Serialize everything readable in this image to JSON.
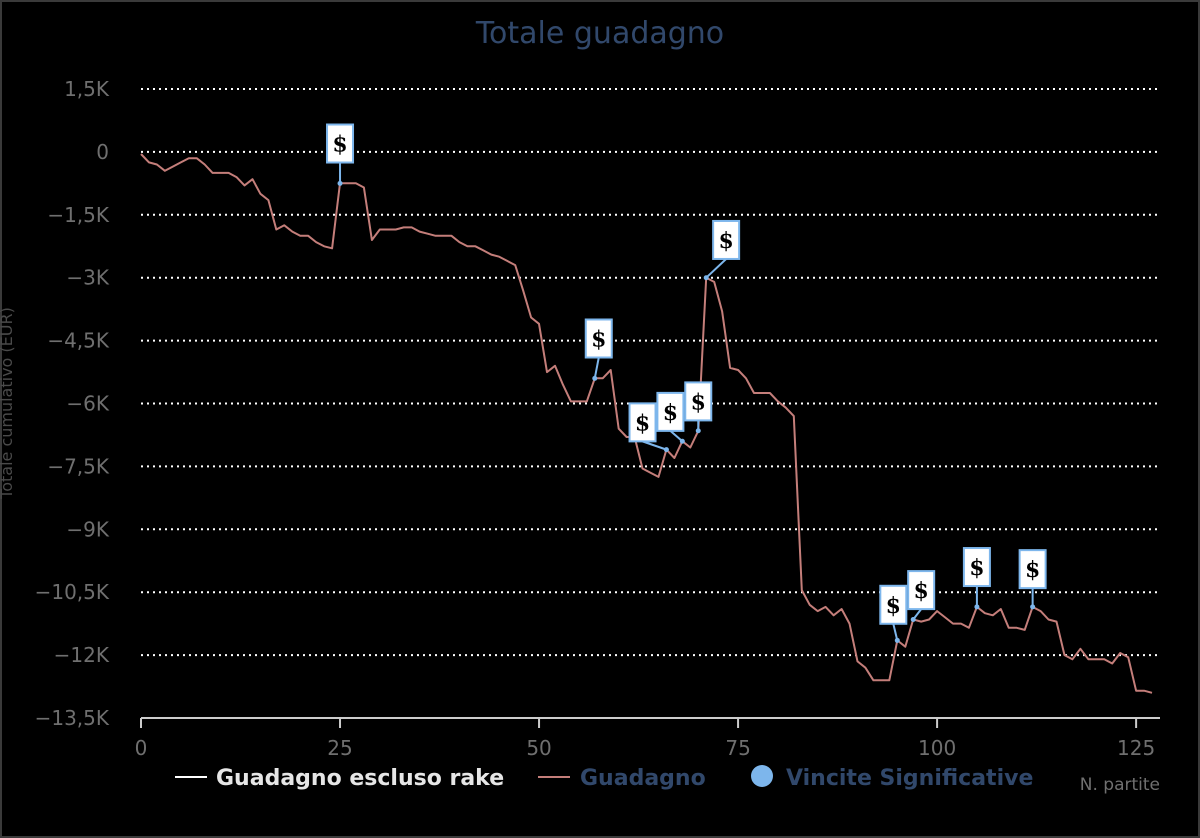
{
  "chart_data": {
    "type": "line",
    "title": "Totale guadagno",
    "xlabel": "N. partite",
    "ylabel": "Totale cumulativo (EUR)",
    "xlim": [
      0,
      128
    ],
    "ylim": [
      -13500,
      1500
    ],
    "x_ticks": [
      0,
      25,
      50,
      75,
      100,
      125
    ],
    "x_tick_labels": [
      "0",
      "25",
      "50",
      "75",
      "100",
      "125"
    ],
    "y_ticks": [
      1500,
      0,
      -1500,
      -3000,
      -4500,
      -6000,
      -7500,
      -9000,
      -10500,
      -12000,
      -13500
    ],
    "y_tick_labels": [
      "1,5K",
      "0",
      "−1,5K",
      "−3K",
      "−4,5K",
      "−6K",
      "−7,5K",
      "−9K",
      "−10,5K",
      "−12K",
      "−13,5K"
    ],
    "grid": true,
    "legend_position": "bottom",
    "colors": {
      "guadagno": "#c47e7a",
      "escluso_rake": "#ffffff",
      "vincite": "#7db6ec",
      "flag_border": "#7db6ec",
      "grid": "#ffffff"
    },
    "series": [
      {
        "name": "Guadagno escluso rake",
        "legend_color": "#ffffff",
        "values": []
      },
      {
        "name": "Guadagno",
        "color": "#c47e7a",
        "x": [
          0,
          1,
          2,
          3,
          4,
          5,
          6,
          7,
          8,
          9,
          10,
          11,
          12,
          13,
          14,
          15,
          16,
          17,
          18,
          19,
          20,
          21,
          22,
          23,
          24,
          25,
          26,
          27,
          28,
          29,
          30,
          31,
          32,
          33,
          34,
          35,
          36,
          37,
          38,
          39,
          40,
          41,
          42,
          43,
          44,
          45,
          46,
          47,
          48,
          49,
          50,
          51,
          52,
          53,
          54,
          55,
          56,
          57,
          58,
          59,
          60,
          61,
          62,
          63,
          64,
          65,
          66,
          67,
          68,
          69,
          70,
          71,
          72,
          73,
          74,
          75,
          76,
          77,
          78,
          79,
          80,
          81,
          82,
          83,
          84,
          85,
          86,
          87,
          88,
          89,
          90,
          91,
          92,
          93,
          94,
          95,
          96,
          97,
          98,
          99,
          100,
          101,
          102,
          103,
          104,
          105,
          106,
          107,
          108,
          109,
          110,
          111,
          112,
          113,
          114,
          115,
          116,
          117,
          118,
          119,
          120,
          121,
          122,
          123,
          124,
          125,
          126,
          127
        ],
        "y": [
          -50,
          -250,
          -300,
          -450,
          -350,
          -250,
          -150,
          -150,
          -300,
          -500,
          -500,
          -500,
          -600,
          -800,
          -650,
          -1000,
          -1150,
          -1850,
          -1750,
          -1900,
          -2000,
          -2000,
          -2150,
          -2250,
          -2300,
          -750,
          -750,
          -750,
          -850,
          -2100,
          -1850,
          -1850,
          -1850,
          -1800,
          -1800,
          -1900,
          -1950,
          -2000,
          -2000,
          -2000,
          -2150,
          -2250,
          -2250,
          -2350,
          -2450,
          -2500,
          -2600,
          -2700,
          -3300,
          -3950,
          -4100,
          -5250,
          -5100,
          -5550,
          -5950,
          -5950,
          -5950,
          -5400,
          -5400,
          -5200,
          -6600,
          -6800,
          -6800,
          -7550,
          -7650,
          -7750,
          -7100,
          -7300,
          -6900,
          -7050,
          -6650,
          -3000,
          -3100,
          -3800,
          -5150,
          -5200,
          -5400,
          -5750,
          -5750,
          -5750,
          -5950,
          -6100,
          -6300,
          -10450,
          -10800,
          -10950,
          -10850,
          -11050,
          -10900,
          -11250,
          -12150,
          -12300,
          -12600,
          -12600,
          -12600,
          -11650,
          -11800,
          -11150,
          -11200,
          -11150,
          -10950,
          -11100,
          -11250,
          -11250,
          -11350,
          -10850,
          -11000,
          -11050,
          -10900,
          -11350,
          -11350,
          -11400,
          -10850,
          -10950,
          -11150,
          -11200,
          -12000,
          -12100,
          -11850,
          -12100,
          -12100,
          -12100,
          -12200,
          -11950,
          -12050,
          -12850,
          -12850,
          -12900
        ]
      },
      {
        "name": "Vincite Significative",
        "color": "#7db6ec",
        "flag_text": "$",
        "points": [
          {
            "x": 25,
            "y": -750,
            "flag_x": 25,
            "flag_y": 200
          },
          {
            "x": 57,
            "y": -5400,
            "flag_x": 57.5,
            "flag_y": -4450
          },
          {
            "x": 66,
            "y": -7100,
            "flag_x": 63,
            "flag_y": -6450
          },
          {
            "x": 68,
            "y": -6900,
            "flag_x": 66.5,
            "flag_y": -6200
          },
          {
            "x": 70,
            "y": -6650,
            "flag_x": 70,
            "flag_y": -5950
          },
          {
            "x": 71,
            "y": -3000,
            "flag_x": 73.5,
            "flag_y": -2100
          },
          {
            "x": 95,
            "y": -11650,
            "flag_x": 94.5,
            "flag_y": -10800
          },
          {
            "x": 97,
            "y": -11150,
            "flag_x": 98,
            "flag_y": -10450
          },
          {
            "x": 105,
            "y": -10850,
            "flag_x": 105,
            "flag_y": -9900
          },
          {
            "x": 112,
            "y": -10850,
            "flag_x": 112,
            "flag_y": -9950
          }
        ]
      }
    ]
  }
}
